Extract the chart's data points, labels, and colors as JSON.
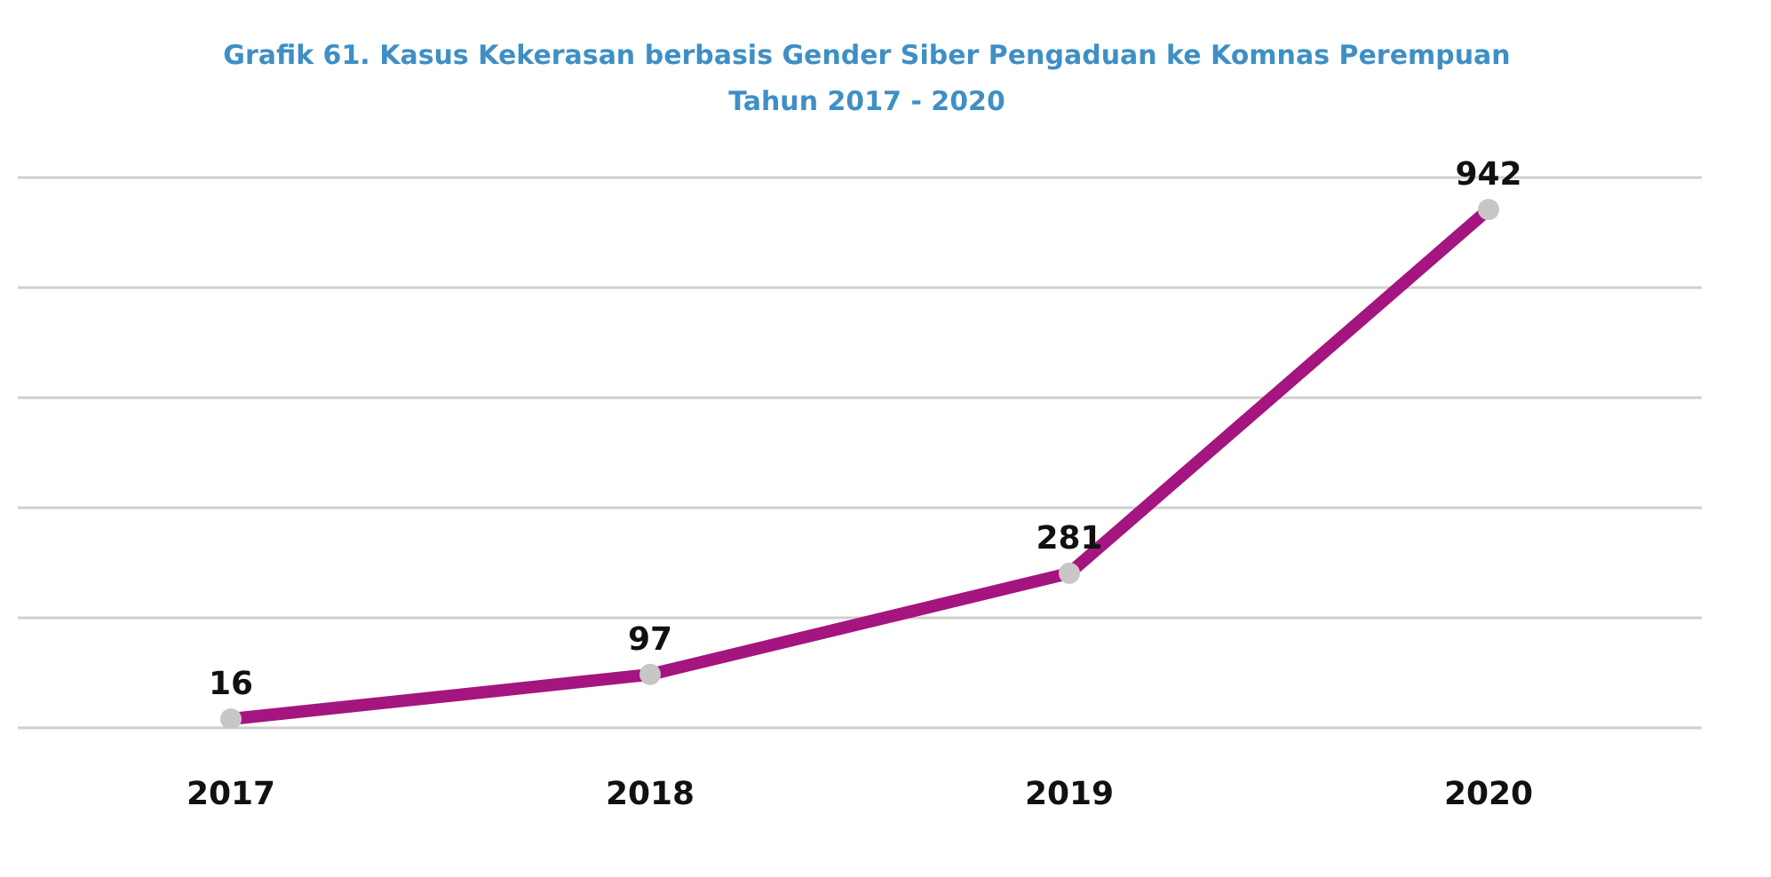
{
  "chart_data": {
    "type": "line",
    "title": "Grafik 61. Kasus Kekerasan berbasis Gender Siber Pengaduan ke Komnas Perempuan",
    "subtitle": "Tahun 2017 - 2020",
    "categories": [
      "2017",
      "2018",
      "2019",
      "2020"
    ],
    "series": [
      {
        "color": "#a4157f",
        "values": [
          16,
          97,
          281,
          942
        ]
      }
    ],
    "ylim": [
      0,
      1000
    ],
    "tick_labels": "x",
    "grid": "y",
    "marker": "circle",
    "line_style": "solid",
    "data_labels": true,
    "legend": false
  }
}
